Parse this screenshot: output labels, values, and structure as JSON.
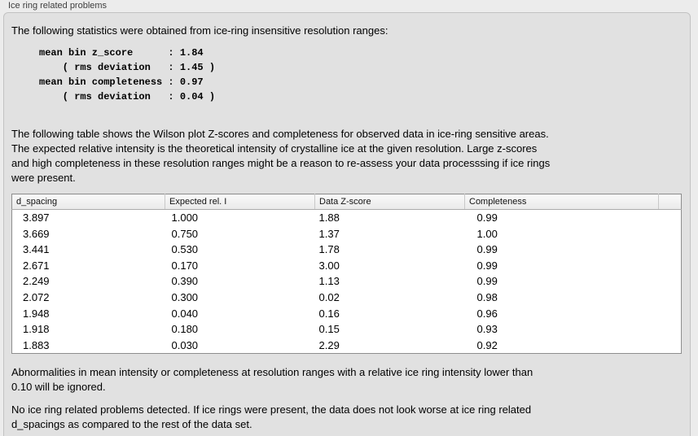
{
  "panel": {
    "title": "Ice ring related problems"
  },
  "intro": "The following statistics were obtained from ice-ring insensitive resolution ranges:",
  "stats_block": "mean bin z_score      : 1.84\n    ( rms deviation   : 1.45 )\nmean bin completeness : 0.97\n    ( rms deviation   : 0.04 )",
  "table_intro": "The following table shows the Wilson plot Z-scores and completeness for observed data in ice-ring sensitive areas.\nThe expected relative intensity is the theoretical intensity of crystalline ice at the given resolution. Large z-scores\nand high completeness in these resolution ranges might be a reason to re-assess your data processsing if ice rings\nwere present.",
  "table": {
    "headers": [
      "d_spacing",
      "Expected rel. I",
      "Data Z-score",
      "Completeness",
      ""
    ],
    "rows": [
      [
        "3.897",
        "1.000",
        "1.88",
        "0.99"
      ],
      [
        "3.669",
        "0.750",
        "1.37",
        "1.00"
      ],
      [
        "3.441",
        "0.530",
        "1.78",
        "0.99"
      ],
      [
        "2.671",
        "0.170",
        "3.00",
        "0.99"
      ],
      [
        "2.249",
        "0.390",
        "1.13",
        "0.99"
      ],
      [
        "2.072",
        "0.300",
        "0.02",
        "0.98"
      ],
      [
        "1.948",
        "0.040",
        "0.16",
        "0.96"
      ],
      [
        "1.918",
        "0.180",
        "0.15",
        "0.93"
      ],
      [
        "1.883",
        "0.030",
        "2.29",
        "0.92"
      ]
    ]
  },
  "note_ignore": "Abnormalities in mean intensity or completeness at resolution ranges with a relative ice ring intensity lower than\n0.10 will be ignored.",
  "conclusion": "No ice ring related problems detected. If ice rings were present, the data does not look worse at ice ring related\nd_spacings as compared to the rest of the data set."
}
